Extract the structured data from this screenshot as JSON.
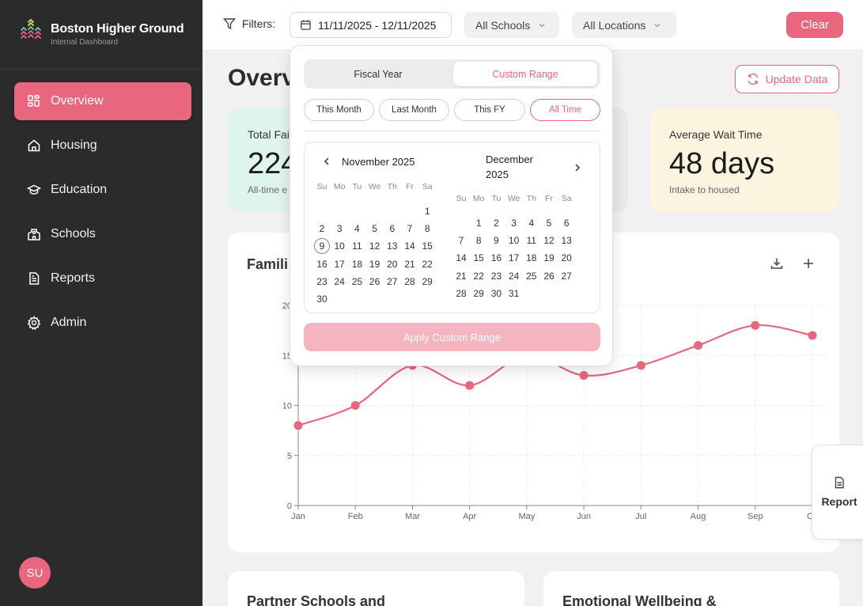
{
  "brand": {
    "title": "Boston Higher Ground",
    "subtitle": "Internal Dashboard"
  },
  "sidebar": {
    "items": [
      {
        "label": "Overview",
        "icon": "grid-icon",
        "active": true
      },
      {
        "label": "Housing",
        "icon": "home-icon"
      },
      {
        "label": "Education",
        "icon": "graduation-cap-icon"
      },
      {
        "label": "Schools",
        "icon": "school-icon"
      },
      {
        "label": "Reports",
        "icon": "document-icon"
      },
      {
        "label": "Admin",
        "icon": "gear-icon"
      }
    ],
    "avatar_initials": "SU"
  },
  "topbar": {
    "filters_label": "Filters:",
    "date_range": "11/11/2025 - 12/11/2025",
    "schools_select": "All Schools",
    "locations_select": "All Locations",
    "clear_label": "Clear"
  },
  "main": {
    "page_title": "Overv",
    "update_label": "Update Data",
    "cards": [
      {
        "label": "Total Fai",
        "value": "224",
        "sub": "All-time e"
      },
      {
        "label": "Average Wait Time",
        "value": "48 days",
        "sub": "Intake to housed"
      }
    ],
    "chart_title": "Famili",
    "report_tab": "Report",
    "bottom_cards": [
      "Partner Schools and",
      "Emotional Wellbeing &"
    ]
  },
  "datepicker": {
    "segments": [
      "Fiscal Year",
      "Custom Range"
    ],
    "quick_ranges": [
      "This Month",
      "Last Month",
      "This FY",
      "All Time"
    ],
    "weekdays": [
      "Su",
      "Mo",
      "Tu",
      "We",
      "Th",
      "Fr",
      "Sa"
    ],
    "months": [
      {
        "title": "November 2025",
        "start_weekday": 6,
        "days": 30,
        "today": 9
      },
      {
        "title_line1": "December",
        "title_line2": "2025",
        "start_weekday": 1,
        "days": 31
      }
    ],
    "apply_label": "Apply Custom Range"
  },
  "chart_data": {
    "type": "line",
    "categories": [
      "Jan",
      "Feb",
      "Mar",
      "Apr",
      "May",
      "Jun",
      "Jul",
      "Aug",
      "Sep",
      "Oc"
    ],
    "values": [
      8,
      10,
      14,
      12,
      15,
      13,
      14,
      16,
      18,
      17
    ],
    "yticks": [
      "0",
      "5",
      "10",
      "15",
      "20"
    ],
    "ylim": [
      0,
      20
    ],
    "color": "#e8667e",
    "grid": true
  }
}
